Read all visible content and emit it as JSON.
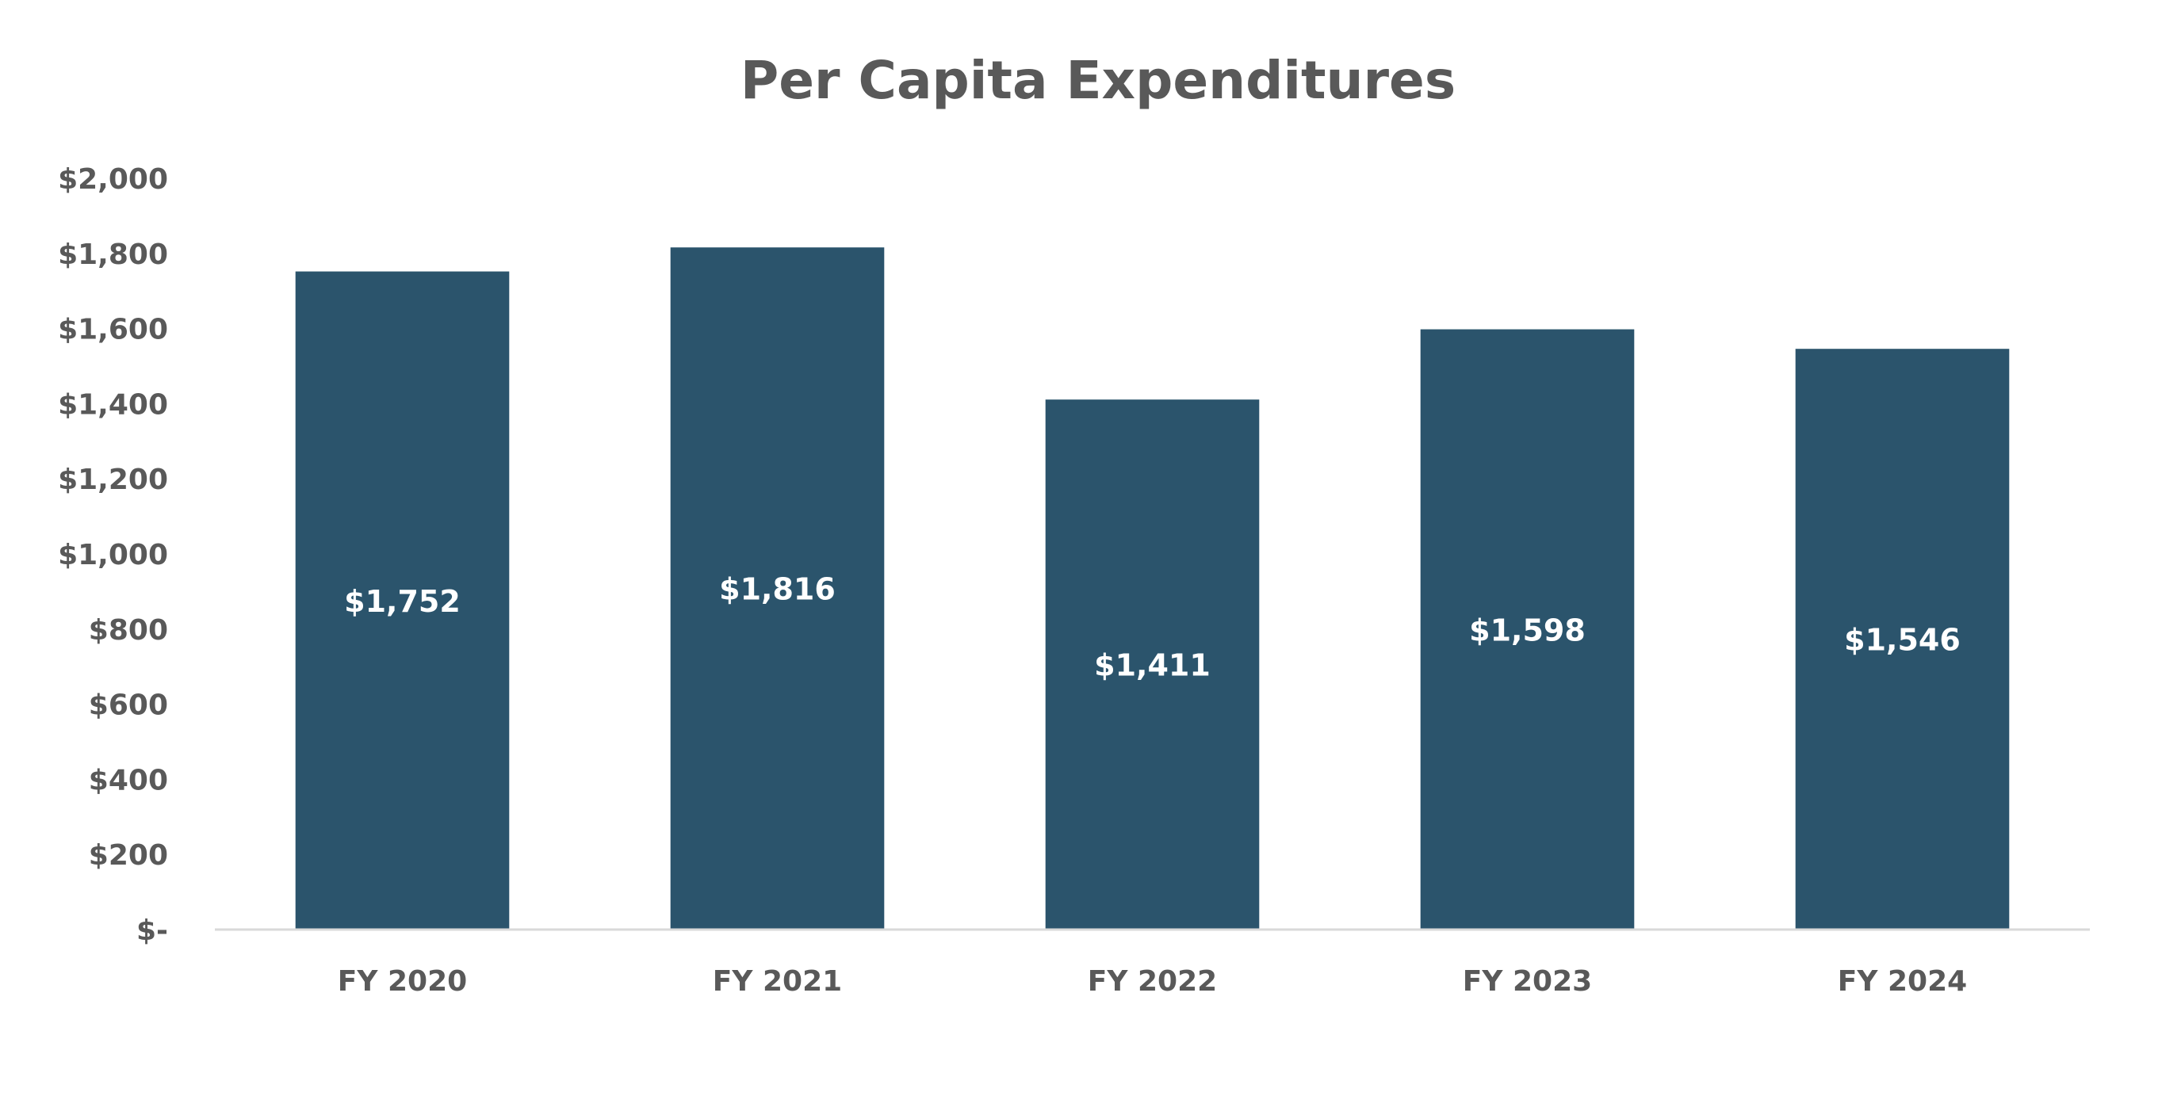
{
  "chart_data": {
    "type": "bar",
    "title": "Per Capita Expenditures",
    "categories": [
      "FY 2020",
      "FY 2021",
      "FY 2022",
      "FY 2023",
      "FY 2024"
    ],
    "values": [
      1752,
      1816,
      1411,
      1598,
      1546
    ],
    "data_labels": [
      "$1,752",
      "$1,816",
      "$1,411",
      "$1,598",
      "$1,546"
    ],
    "xlabel": "",
    "ylabel": "",
    "ylim": [
      0,
      2000
    ],
    "yticks": [
      0,
      200,
      400,
      600,
      800,
      1000,
      1200,
      1400,
      1600,
      1800,
      2000
    ],
    "ytick_labels": [
      "$-",
      "$200",
      "$400",
      "$600",
      "$800",
      "$1,000",
      "$1,200",
      "$1,400",
      "$1,600",
      "$1,800",
      "$2,000"
    ],
    "grid": false,
    "legend": "none",
    "colors": {
      "bar": "#2B546C",
      "text": "#595959",
      "axis": "#D9D9D9",
      "data_label": "#FFFFFF"
    }
  }
}
